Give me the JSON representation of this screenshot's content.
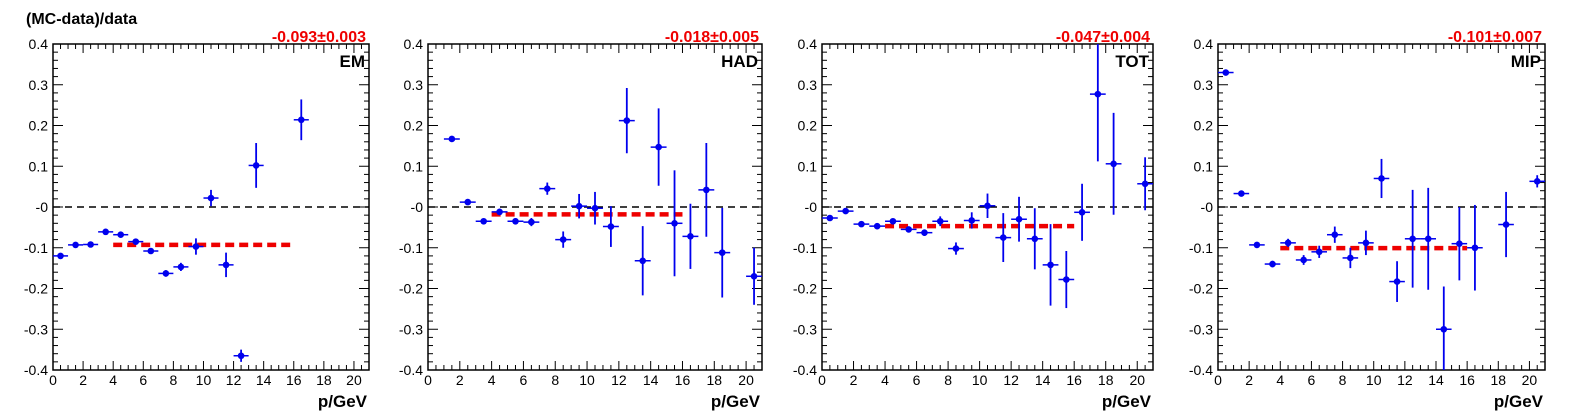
{
  "figure": {
    "ylabel": "(MC-data)/data"
  },
  "colors": {
    "points": "#0000ee",
    "fit": "#ee0000",
    "zero_line": "#000000"
  },
  "chart_data": [
    {
      "type": "scatter",
      "panel_label": "EM",
      "fit_text": "-0.093±0.003",
      "fit_value": -0.093,
      "fit_range": [
        4,
        16
      ],
      "xlabel": "p/GeV",
      "xlim": [
        0,
        21
      ],
      "ylim": [
        -0.4,
        0.4
      ],
      "xticks": [
        "0",
        "2",
        "4",
        "6",
        "8",
        "10",
        "12",
        "14",
        "16",
        "18",
        "20"
      ],
      "yticks": [
        "-0.4",
        "-0.3",
        "-0.2",
        "-0.1",
        "-0",
        "0.1",
        "0.2",
        "0.3",
        "0.4"
      ],
      "points": [
        {
          "x": 0.5,
          "y": -0.12,
          "err": 0.006
        },
        {
          "x": 1.5,
          "y": -0.093,
          "err": 0.005
        },
        {
          "x": 2.5,
          "y": -0.092,
          "err": 0.005
        },
        {
          "x": 3.5,
          "y": -0.061,
          "err": 0.005
        },
        {
          "x": 4.5,
          "y": -0.068,
          "err": 0.006
        },
        {
          "x": 5.5,
          "y": -0.085,
          "err": 0.006
        },
        {
          "x": 6.5,
          "y": -0.108,
          "err": 0.006
        },
        {
          "x": 7.5,
          "y": -0.163,
          "err": 0.008
        },
        {
          "x": 8.5,
          "y": -0.147,
          "err": 0.01
        },
        {
          "x": 9.5,
          "y": -0.097,
          "err": 0.02
        },
        {
          "x": 10.5,
          "y": 0.022,
          "err": 0.02
        },
        {
          "x": 11.5,
          "y": -0.142,
          "err": 0.03
        },
        {
          "x": 12.5,
          "y": -0.365,
          "err": 0.015
        },
        {
          "x": 13.5,
          "y": 0.102,
          "err": 0.055
        },
        {
          "x": 16.5,
          "y": 0.214,
          "err": 0.05
        }
      ]
    },
    {
      "type": "scatter",
      "panel_label": "HAD",
      "fit_text": "-0.018±0.005",
      "fit_value": -0.018,
      "fit_range": [
        4,
        16
      ],
      "xlabel": "p/GeV",
      "xlim": [
        0,
        21
      ],
      "ylim": [
        -0.4,
        0.4
      ],
      "xticks": [
        "0",
        "2",
        "4",
        "6",
        "8",
        "10",
        "12",
        "14",
        "16",
        "18",
        "20"
      ],
      "yticks": [
        "-0.4",
        "-0.3",
        "-0.2",
        "-0.1",
        "-0",
        "0.1",
        "0.2",
        "0.3",
        "0.4"
      ],
      "points": [
        {
          "x": 1.5,
          "y": 0.167,
          "err": 0.004
        },
        {
          "x": 2.5,
          "y": 0.012,
          "err": 0.006
        },
        {
          "x": 3.5,
          "y": -0.035,
          "err": 0.006
        },
        {
          "x": 4.5,
          "y": -0.012,
          "err": 0.008
        },
        {
          "x": 5.5,
          "y": -0.035,
          "err": 0.008
        },
        {
          "x": 6.5,
          "y": -0.037,
          "err": 0.01
        },
        {
          "x": 7.5,
          "y": 0.045,
          "err": 0.015
        },
        {
          "x": 8.5,
          "y": -0.08,
          "err": 0.02
        },
        {
          "x": 9.5,
          "y": 0.002,
          "err": 0.03
        },
        {
          "x": 10.5,
          "y": -0.003,
          "err": 0.04
        },
        {
          "x": 11.5,
          "y": -0.048,
          "err": 0.05
        },
        {
          "x": 12.5,
          "y": 0.212,
          "err": 0.08
        },
        {
          "x": 13.5,
          "y": -0.132,
          "err": 0.085
        },
        {
          "x": 14.5,
          "y": 0.147,
          "err": 0.095
        },
        {
          "x": 15.5,
          "y": -0.04,
          "err": 0.13
        },
        {
          "x": 16.5,
          "y": -0.072,
          "err": 0.08
        },
        {
          "x": 17.5,
          "y": 0.042,
          "err": 0.115
        },
        {
          "x": 18.5,
          "y": -0.112,
          "err": 0.11
        },
        {
          "x": 20.5,
          "y": -0.17,
          "err": 0.07
        }
      ]
    },
    {
      "type": "scatter",
      "panel_label": "TOT",
      "fit_text": "-0.047±0.004",
      "fit_value": -0.047,
      "fit_range": [
        4,
        16
      ],
      "xlabel": "p/GeV",
      "xlim": [
        0,
        21
      ],
      "ylim": [
        -0.4,
        0.4
      ],
      "xticks": [
        "0",
        "2",
        "4",
        "6",
        "8",
        "10",
        "12",
        "14",
        "16",
        "18",
        "20"
      ],
      "yticks": [
        "-0.4",
        "-0.3",
        "-0.2",
        "-0.1",
        "-0",
        "0.1",
        "0.2",
        "0.3",
        "0.4"
      ],
      "points": [
        {
          "x": 0.5,
          "y": -0.027,
          "err": 0.006
        },
        {
          "x": 1.5,
          "y": -0.01,
          "err": 0.005
        },
        {
          "x": 2.5,
          "y": -0.042,
          "err": 0.005
        },
        {
          "x": 3.5,
          "y": -0.047,
          "err": 0.005
        },
        {
          "x": 4.5,
          "y": -0.035,
          "err": 0.006
        },
        {
          "x": 5.5,
          "y": -0.055,
          "err": 0.006
        },
        {
          "x": 6.5,
          "y": -0.063,
          "err": 0.008
        },
        {
          "x": 7.5,
          "y": -0.035,
          "err": 0.012
        },
        {
          "x": 8.5,
          "y": -0.102,
          "err": 0.015
        },
        {
          "x": 9.5,
          "y": -0.033,
          "err": 0.02
        },
        {
          "x": 10.5,
          "y": 0.003,
          "err": 0.03
        },
        {
          "x": 11.5,
          "y": -0.075,
          "err": 0.06
        },
        {
          "x": 12.5,
          "y": -0.03,
          "err": 0.055
        },
        {
          "x": 13.5,
          "y": -0.078,
          "err": 0.075
        },
        {
          "x": 14.5,
          "y": -0.142,
          "err": 0.1
        },
        {
          "x": 15.5,
          "y": -0.178,
          "err": 0.07
        },
        {
          "x": 16.5,
          "y": -0.013,
          "err": 0.07
        },
        {
          "x": 17.5,
          "y": 0.277,
          "err": 0.165
        },
        {
          "x": 18.5,
          "y": 0.106,
          "err": 0.125
        },
        {
          "x": 20.5,
          "y": 0.057,
          "err": 0.065
        }
      ]
    },
    {
      "type": "scatter",
      "panel_label": "MIP",
      "fit_text": "-0.101±0.007",
      "fit_value": -0.101,
      "fit_range": [
        4,
        16
      ],
      "xlabel": "p/GeV",
      "xlim": [
        0,
        21
      ],
      "ylim": [
        -0.4,
        0.4
      ],
      "xticks": [
        "0",
        "2",
        "4",
        "6",
        "8",
        "10",
        "12",
        "14",
        "16",
        "18",
        "20"
      ],
      "yticks": [
        "-0.4",
        "-0.3",
        "-0.2",
        "-0.1",
        "-0",
        "0.1",
        "0.2",
        "0.3",
        "0.4"
      ],
      "points": [
        {
          "x": 0.5,
          "y": 0.33,
          "err": 0.005
        },
        {
          "x": 1.5,
          "y": 0.033,
          "err": 0.005
        },
        {
          "x": 2.5,
          "y": -0.093,
          "err": 0.006
        },
        {
          "x": 3.5,
          "y": -0.14,
          "err": 0.008
        },
        {
          "x": 4.5,
          "y": -0.088,
          "err": 0.01
        },
        {
          "x": 5.5,
          "y": -0.13,
          "err": 0.012
        },
        {
          "x": 6.5,
          "y": -0.11,
          "err": 0.015
        },
        {
          "x": 7.5,
          "y": -0.068,
          "err": 0.02
        },
        {
          "x": 8.5,
          "y": -0.125,
          "err": 0.025
        },
        {
          "x": 9.5,
          "y": -0.088,
          "err": 0.03
        },
        {
          "x": 10.5,
          "y": 0.07,
          "err": 0.048
        },
        {
          "x": 11.5,
          "y": -0.183,
          "err": 0.05
        },
        {
          "x": 12.5,
          "y": -0.078,
          "err": 0.12
        },
        {
          "x": 13.5,
          "y": -0.078,
          "err": 0.125
        },
        {
          "x": 14.5,
          "y": -0.3,
          "err": 0.105
        },
        {
          "x": 15.5,
          "y": -0.09,
          "err": 0.09
        },
        {
          "x": 16.5,
          "y": -0.1,
          "err": 0.105
        },
        {
          "x": 18.5,
          "y": -0.043,
          "err": 0.08
        },
        {
          "x": 20.5,
          "y": 0.063,
          "err": 0.015
        }
      ]
    }
  ]
}
